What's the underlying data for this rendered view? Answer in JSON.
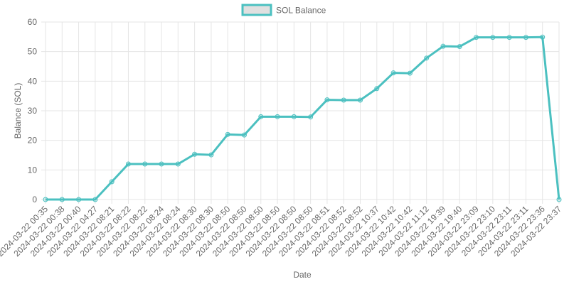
{
  "chart_data": {
    "type": "line",
    "title": "",
    "xlabel": "Date",
    "ylabel": "Balance (SOL)",
    "ylim": [
      0,
      60
    ],
    "yticks": [
      0,
      10,
      20,
      30,
      40,
      50,
      60
    ],
    "grid": true,
    "legend": "top-center",
    "colors": {
      "line": "#4bc0c0",
      "legend_fill": "#e0e0e0",
      "grid": "#e5e5e5",
      "text": "#666666"
    },
    "x": [
      "2024-03-22 00:35",
      "2024-03-22 00:38",
      "2024-03-22 00:40",
      "2024-03-22 04:27",
      "2024-03-22 08:21",
      "2024-03-22 08:22",
      "2024-03-22 08:22",
      "2024-03-22 08:24",
      "2024-03-22 08:24",
      "2024-03-22 08:30",
      "2024-03-22 08:30",
      "2024-03-22 08:50",
      "2024-03-22 08:50",
      "2024-03-22 08:50",
      "2024-03-22 08:50",
      "2024-03-22 08:50",
      "2024-03-22 08:50",
      "2024-03-22 08:51",
      "2024-03-22 08:52",
      "2024-03-22 08:52",
      "2024-03-22 10:37",
      "2024-03-22 10:42",
      "2024-03-22 10:42",
      "2024-03-22 11:12",
      "2024-03-22 19:39",
      "2024-03-22 19:40",
      "2024-03-22 23:09",
      "2024-03-22 23:10",
      "2024-03-22 23:11",
      "2024-03-22 23:11",
      "2024-03-22 23:36",
      "2024-03-22 23:37"
    ],
    "series": [
      {
        "name": "SOL Balance",
        "values": [
          0,
          0,
          0,
          0,
          6,
          12,
          12,
          12,
          12,
          15.3,
          15.1,
          22,
          21.8,
          28,
          28,
          28,
          27.9,
          33.7,
          33.6,
          33.6,
          37.5,
          42.8,
          42.7,
          47.8,
          51.8,
          51.7,
          54.8,
          54.8,
          54.8,
          54.8,
          54.9,
          0
        ]
      }
    ]
  }
}
